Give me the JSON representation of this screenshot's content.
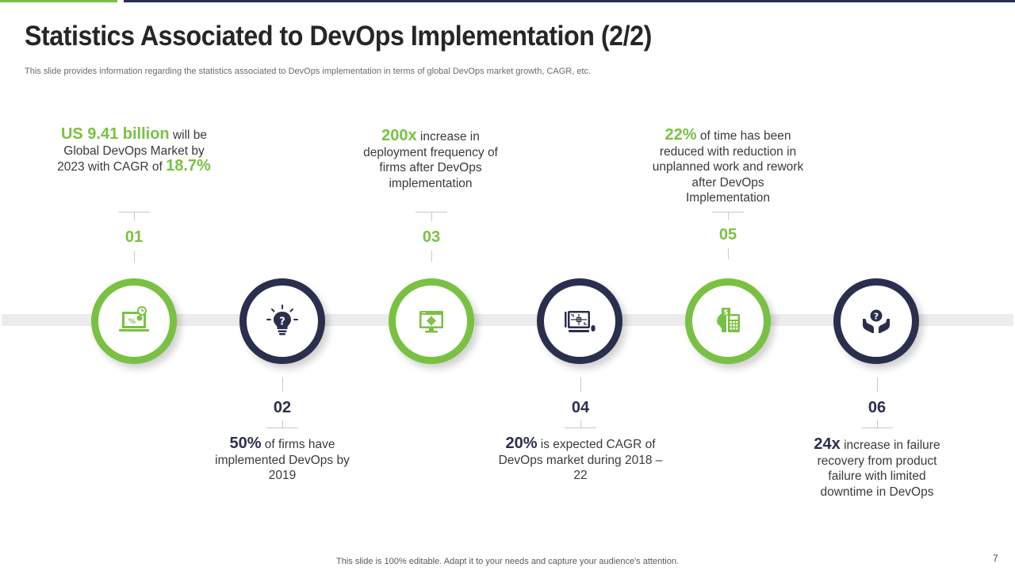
{
  "header": {
    "title": "Statistics Associated to DevOps Implementation (2/2)",
    "subtitle": "This slide provides information regarding the statistics associated to DevOps implementation in terms of global DevOps market growth, CAGR, etc."
  },
  "colors": {
    "accent_green": "#7ac143",
    "accent_navy": "#2b2f4e",
    "band": "#ececec"
  },
  "steps": [
    {
      "number": "01",
      "icon": "laptop-percent-chart-icon",
      "highlight": "US 9.41 billion",
      "text_a": " will be Global DevOps Market by 2023 with CAGR of ",
      "highlight2": "18.7%"
    },
    {
      "number": "02",
      "icon": "lightbulb-question-icon",
      "highlight": "50%",
      "text_a": " of firms have implemented DevOps by 2019"
    },
    {
      "number": "03",
      "icon": "monitor-gear-icon",
      "highlight": "200x",
      "text_a": " increase in deployment frequency of firms after DevOps implementation"
    },
    {
      "number": "04",
      "icon": "tablet-workflow-icon",
      "highlight": "20%",
      "text_a": " is expected CAGR of DevOps market during 2018 – 22"
    },
    {
      "number": "05",
      "icon": "head-dollar-calculator-icon",
      "highlight": "22%",
      "text_a": " of time has been reduced with reduction in unplanned work and rework after DevOps Implementation"
    },
    {
      "number": "06",
      "icon": "hands-question-icon",
      "highlight": "24x",
      "text_a": " increase in failure recovery from product failure with limited downtime in DevOps"
    }
  ],
  "footer": {
    "note": "This slide is 100% editable. Adapt it to your needs and capture your audience's attention.",
    "page_number": "7"
  }
}
